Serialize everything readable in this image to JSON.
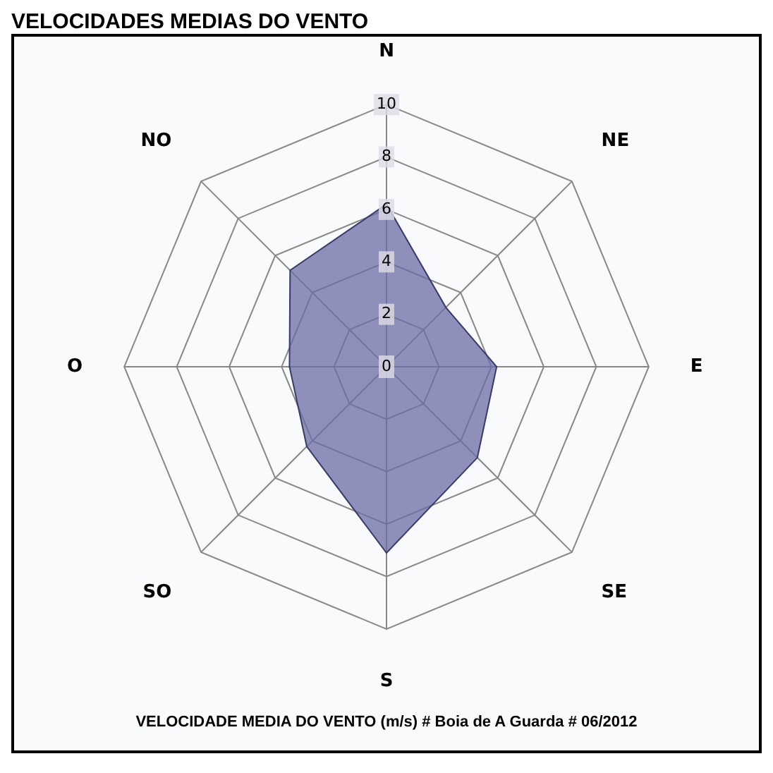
{
  "chart_data": {
    "type": "radar",
    "title": "VELOCIDADES MEDIAS DO VENTO",
    "categories": [
      "N",
      "NE",
      "E",
      "SE",
      "S",
      "SO",
      "O",
      "NO"
    ],
    "series": [
      {
        "color": "#6b6ba6",
        "values": [
          6.2,
          3.2,
          4.2,
          4.9,
          7.1,
          4.3,
          3.7,
          5.2
        ]
      }
    ],
    "ylim": [
      0,
      10
    ],
    "yticks": [
      0,
      2,
      4,
      6,
      8,
      10
    ],
    "grid": true,
    "legend": false,
    "annotations": [
      "VELOCIDADE MEDIA DO VENTO (m/s) # Boia de A Guarda # 06/2012"
    ]
  }
}
